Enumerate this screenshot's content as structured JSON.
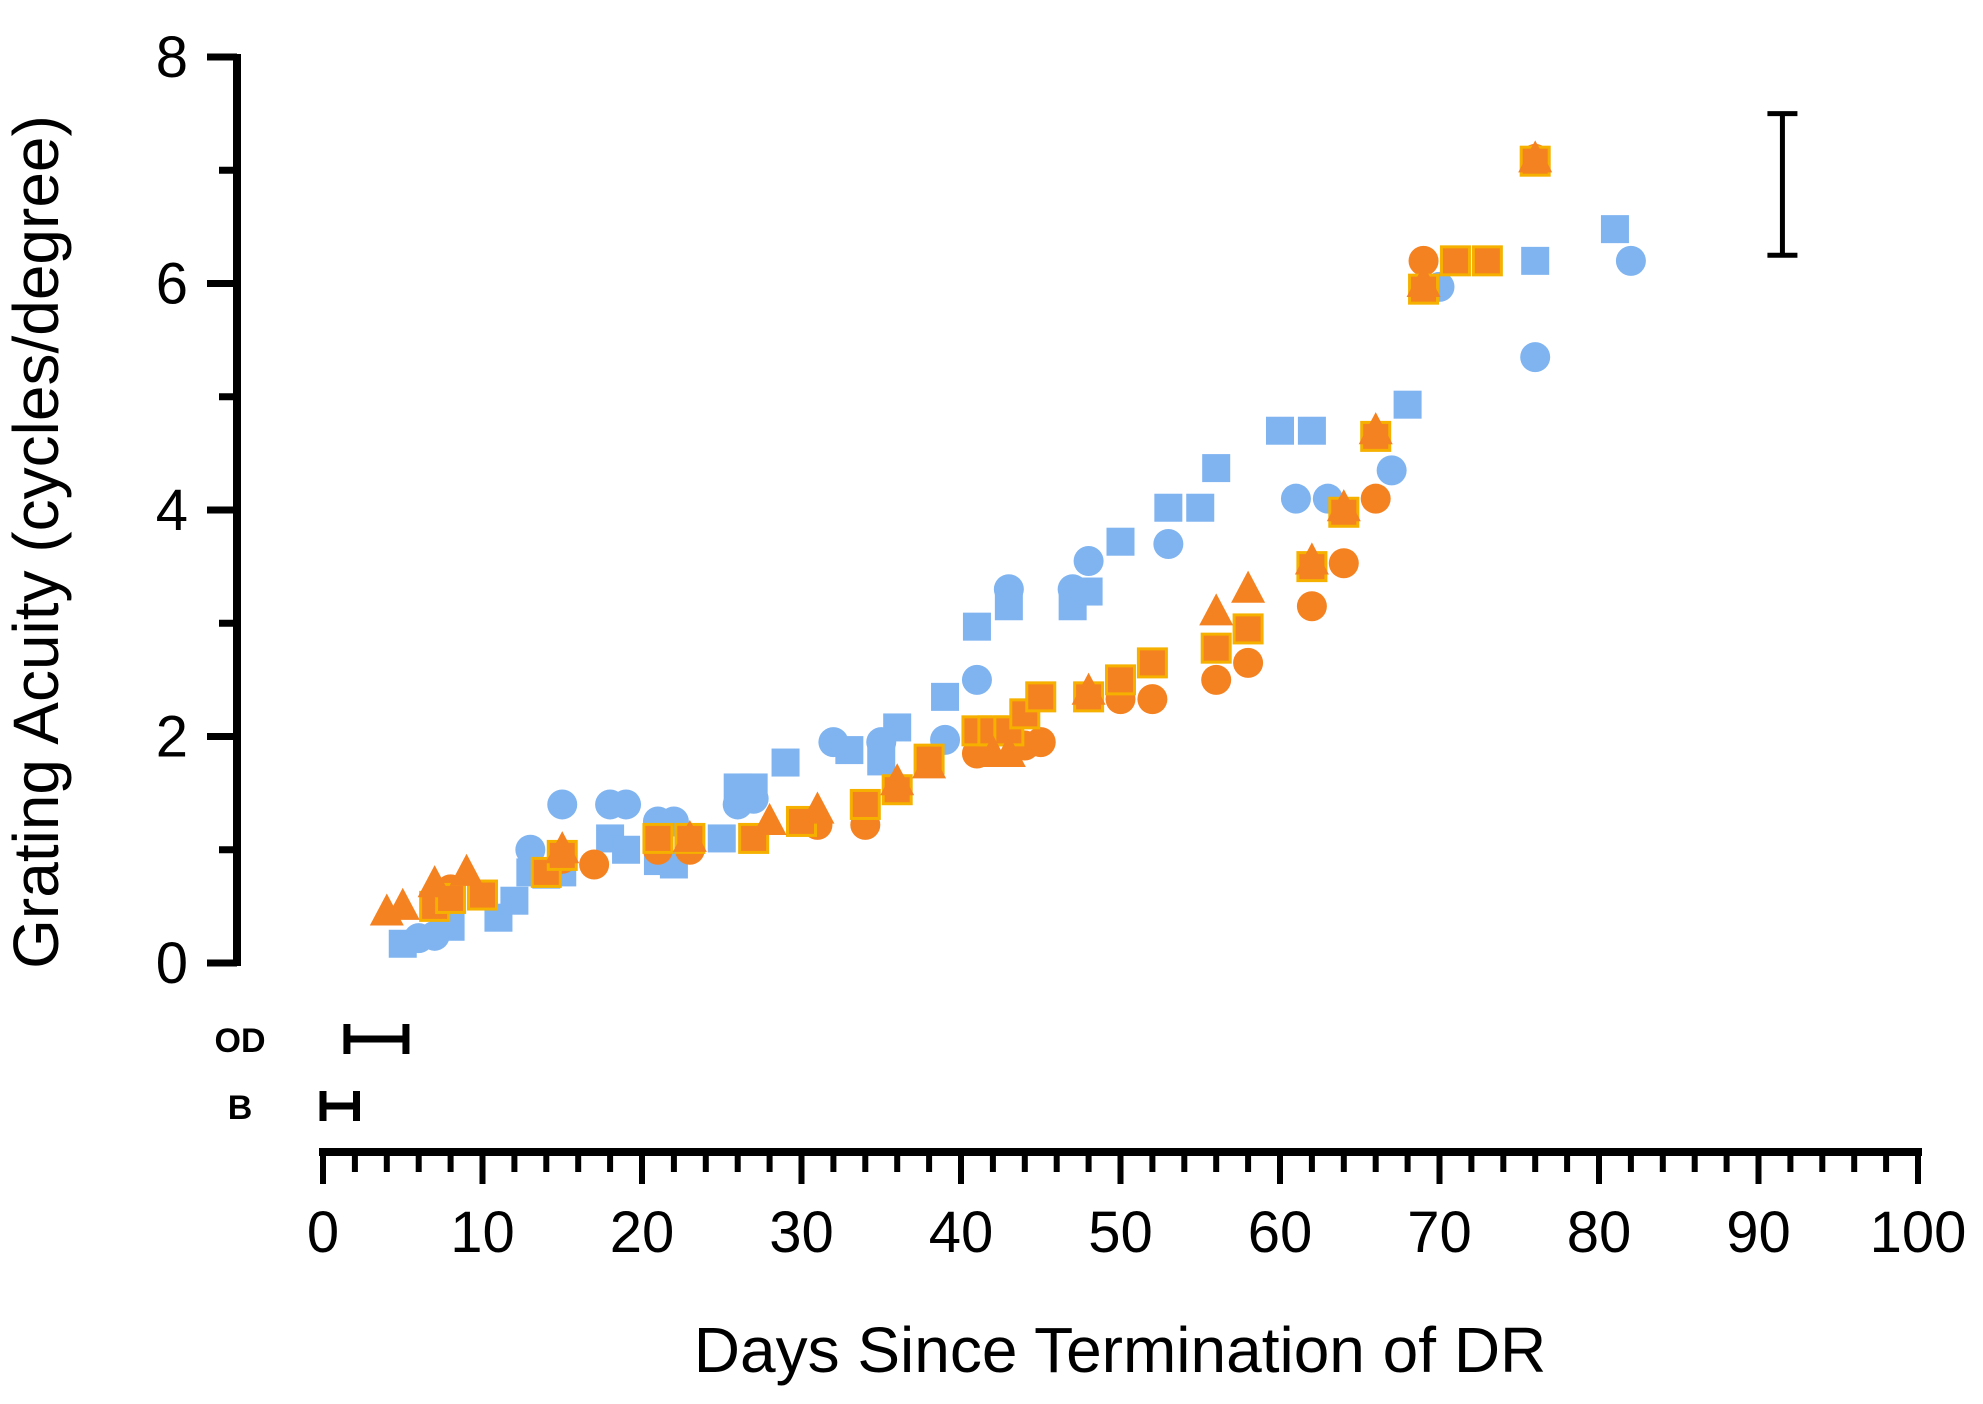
{
  "chart_data": {
    "type": "scatter",
    "title": "",
    "xlabel": "Days Since Termination of DR",
    "ylabel": "Grating Acuity (cycles/degree)",
    "xlim": [
      0,
      100
    ],
    "ylim": [
      0,
      8
    ],
    "x_ticks": [
      "0",
      "10",
      "20",
      "30",
      "40",
      "50",
      "60",
      "70",
      "80",
      "90",
      "100"
    ],
    "y_ticks": [
      "0",
      "2",
      "4",
      "6",
      "8"
    ],
    "colors": {
      "blue": "#7fb4f0",
      "orange": "#f58220",
      "orange_square_edge": "#f5b000",
      "axis": "#000000"
    },
    "series": [
      {
        "name": "blue-circles",
        "marker": "circle",
        "color": "#7fb4f0",
        "points": [
          [
            6,
            0.22
          ],
          [
            7,
            0.24
          ],
          [
            13,
            1.0
          ],
          [
            15,
            1.4
          ],
          [
            18,
            1.4
          ],
          [
            19,
            1.4
          ],
          [
            21,
            1.25
          ],
          [
            22,
            1.25
          ],
          [
            26,
            1.4
          ],
          [
            27,
            1.45
          ],
          [
            32,
            1.95
          ],
          [
            35,
            1.95
          ],
          [
            39,
            1.97
          ],
          [
            41,
            2.5
          ],
          [
            43,
            3.3
          ],
          [
            47,
            3.3
          ],
          [
            48,
            3.55
          ],
          [
            53,
            3.7
          ],
          [
            61,
            4.1
          ],
          [
            63,
            4.1
          ],
          [
            67,
            4.35
          ],
          [
            70,
            5.97
          ],
          [
            76,
            5.35
          ],
          [
            82,
            6.2
          ]
        ]
      },
      {
        "name": "blue-squares",
        "marker": "square",
        "color": "#7fb4f0",
        "points": [
          [
            5,
            0.17
          ],
          [
            8,
            0.32
          ],
          [
            11,
            0.4
          ],
          [
            12,
            0.55
          ],
          [
            13,
            0.8
          ],
          [
            14,
            0.78
          ],
          [
            15,
            0.8
          ],
          [
            18,
            1.1
          ],
          [
            19,
            1.0
          ],
          [
            21,
            0.9
          ],
          [
            22,
            0.87
          ],
          [
            25,
            1.1
          ],
          [
            26,
            1.55
          ],
          [
            27,
            1.55
          ],
          [
            29,
            1.77
          ],
          [
            33,
            1.88
          ],
          [
            35,
            1.78
          ],
          [
            36,
            2.08
          ],
          [
            39,
            2.35
          ],
          [
            41,
            2.97
          ],
          [
            43,
            3.15
          ],
          [
            47,
            3.15
          ],
          [
            48,
            3.28
          ],
          [
            50,
            3.72
          ],
          [
            53,
            4.02
          ],
          [
            55,
            4.02
          ],
          [
            56,
            4.37
          ],
          [
            60,
            4.7
          ],
          [
            62,
            4.7
          ],
          [
            68,
            4.93
          ],
          [
            71,
            6.2
          ],
          [
            76,
            6.2
          ],
          [
            81,
            6.48
          ]
        ]
      },
      {
        "name": "orange-circles",
        "marker": "circle",
        "color": "#f58220",
        "points": [
          [
            8,
            0.65
          ],
          [
            15,
            0.92
          ],
          [
            17,
            0.87
          ],
          [
            21,
            1.0
          ],
          [
            23,
            1.0
          ],
          [
            31,
            1.22
          ],
          [
            34,
            1.22
          ],
          [
            41,
            1.85
          ],
          [
            44,
            1.92
          ],
          [
            45,
            1.95
          ],
          [
            48,
            2.35
          ],
          [
            50,
            2.33
          ],
          [
            52,
            2.33
          ],
          [
            56,
            2.5
          ],
          [
            58,
            2.65
          ],
          [
            62,
            3.15
          ],
          [
            64,
            3.53
          ],
          [
            66,
            4.1
          ],
          [
            69,
            6.2
          ],
          [
            76,
            7.1
          ]
        ]
      },
      {
        "name": "orange-triangles",
        "marker": "triangle",
        "color": "#f58220",
        "points": [
          [
            4,
            0.45
          ],
          [
            5,
            0.5
          ],
          [
            7,
            0.7
          ],
          [
            9,
            0.8
          ],
          [
            15,
            1.0
          ],
          [
            23,
            1.1
          ],
          [
            28,
            1.25
          ],
          [
            31,
            1.35
          ],
          [
            36,
            1.6
          ],
          [
            38,
            1.75
          ],
          [
            42,
            1.85
          ],
          [
            43,
            1.85
          ],
          [
            48,
            2.4
          ],
          [
            56,
            3.1
          ],
          [
            58,
            3.3
          ],
          [
            62,
            3.55
          ],
          [
            64,
            4.02
          ],
          [
            66,
            4.7
          ],
          [
            69,
            6.0
          ],
          [
            76,
            7.1
          ]
        ]
      },
      {
        "name": "orange-squares",
        "marker": "square",
        "color": "#f58220",
        "points": [
          [
            7,
            0.5
          ],
          [
            8,
            0.57
          ],
          [
            10,
            0.6
          ],
          [
            14,
            0.8
          ],
          [
            15,
            0.95
          ],
          [
            21,
            1.1
          ],
          [
            23,
            1.1
          ],
          [
            27,
            1.1
          ],
          [
            30,
            1.25
          ],
          [
            34,
            1.4
          ],
          [
            36,
            1.53
          ],
          [
            38,
            1.8
          ],
          [
            41,
            2.05
          ],
          [
            42,
            2.05
          ],
          [
            43,
            2.05
          ],
          [
            44,
            2.2
          ],
          [
            45,
            2.35
          ],
          [
            48,
            2.35
          ],
          [
            50,
            2.5
          ],
          [
            52,
            2.65
          ],
          [
            56,
            2.78
          ],
          [
            58,
            2.95
          ],
          [
            62,
            3.5
          ],
          [
            64,
            3.98
          ],
          [
            66,
            4.65
          ],
          [
            69,
            5.95
          ],
          [
            71,
            6.2
          ],
          [
            73,
            6.2
          ],
          [
            76,
            7.08
          ]
        ]
      }
    ],
    "error_bar": {
      "x": 91.5,
      "y_low": 6.25,
      "y_high": 7.5
    },
    "range_bars": [
      {
        "label": "OD",
        "x_low": 1.5,
        "x_high": 5.2
      },
      {
        "label": "B",
        "x_low": 0,
        "x_high": 2.1
      }
    ]
  }
}
